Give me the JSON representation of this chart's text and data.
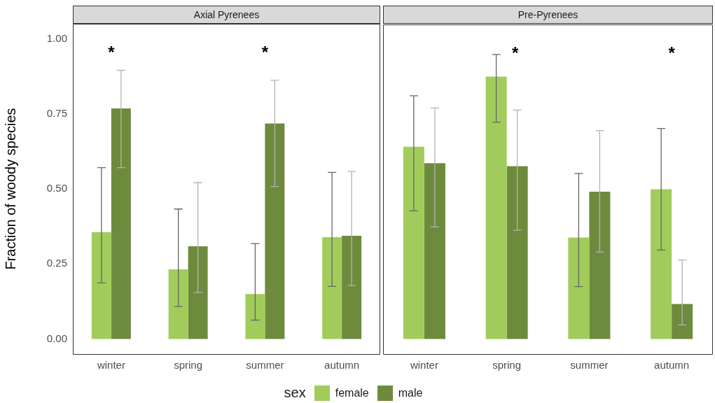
{
  "chart_data": [
    {
      "type": "bar",
      "title": "Axial Pyrenees",
      "ylabel": "Fraction of woody species",
      "legend": "bottom",
      "legend_title": "sex",
      "categories": [
        "winter",
        "spring",
        "summer",
        "autumn"
      ],
      "series": [
        {
          "name": "female",
          "color": "#a1cc5b",
          "values": [
            0.356,
            0.232,
            0.15,
            0.339
          ],
          "errors": [
            [
              0.187,
              0.571
            ],
            [
              0.108,
              0.433
            ],
            [
              0.063,
              0.318
            ],
            [
              0.175,
              0.555
            ]
          ]
        },
        {
          "name": "male",
          "color": "#6e8b3d",
          "values": [
            0.768,
            0.309,
            0.718,
            0.344
          ],
          "errors": [
            [
              0.571,
              0.895
            ],
            [
              0.155,
              0.521
            ],
            [
              0.508,
              0.862
            ],
            [
              0.178,
              0.558
            ]
          ]
        }
      ],
      "ylim": [
        -0.05,
        1.05
      ],
      "yticks": [
        {
          "value": 0,
          "label": "0.00"
        },
        {
          "value": 0.25,
          "label": "0.25"
        },
        {
          "value": 0.5,
          "label": "0.50"
        },
        {
          "value": 0.75,
          "label": "0.75"
        },
        {
          "value": 1,
          "label": "1.00"
        }
      ],
      "annotations": [
        "*",
        "*"
      ]
    },
    {
      "type": "bar",
      "title": "Pre-Pyrenees",
      "categories": [
        "winter",
        "spring",
        "summer",
        "autumn"
      ],
      "tick_labels": "x",
      "series": [
        {
          "color": "#a1cc5b",
          "values": [
            0.642,
            0.876,
            0.339,
            0.5
          ],
          "errors": [
            [
              0.428,
              0.812
            ],
            [
              0.724,
              0.95
            ],
            [
              0.175,
              0.553
            ],
            [
              0.297,
              0.703
            ]
          ]
        },
        {
          "color": "#6e8b3d",
          "values": [
            0.587,
            0.577,
            0.492,
            0.117
          ],
          "errors": [
            [
              0.374,
              0.771
            ],
            [
              0.363,
              0.764
            ],
            [
              0.29,
              0.696
            ],
            [
              0.047,
              0.264
            ]
          ]
        }
      ],
      "ylim": [
        -0.05,
        1.05
      ],
      "annotations": [
        "*",
        "*"
      ]
    }
  ]
}
